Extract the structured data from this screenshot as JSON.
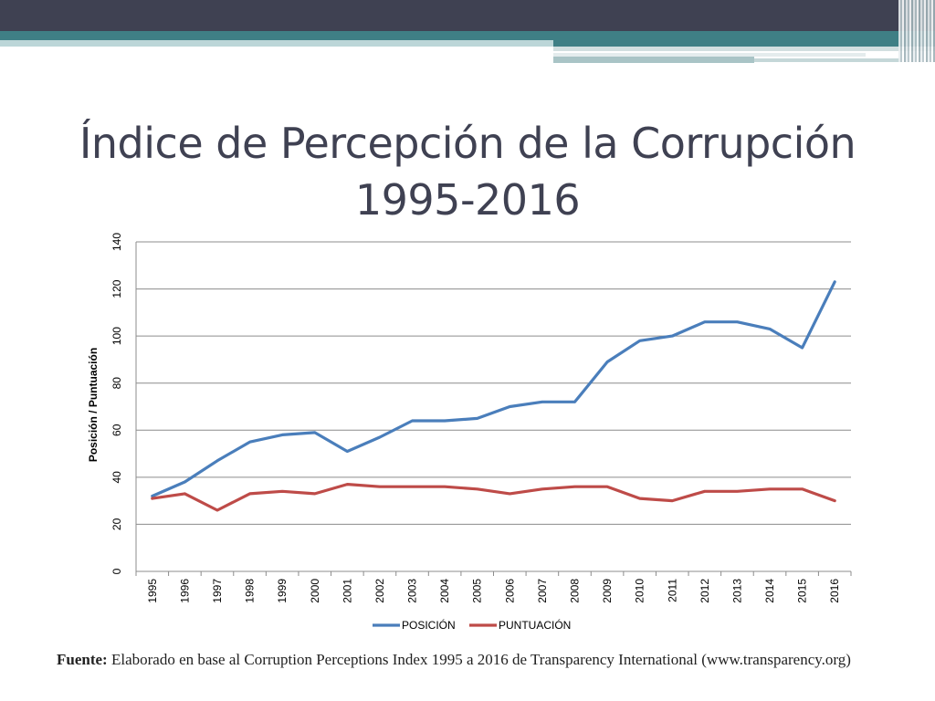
{
  "slide": {
    "title_line1": "Índice de Percepción de la Corrupción",
    "title_line2": "1995-2016",
    "source_label": "Fuente:",
    "source_text": " Elaborado en base al Corruption Perceptions Index 1995 a 2016 de Transparency International (www.transparency.org)"
  },
  "colors": {
    "header_dark": "#3f4152",
    "header_teal": "#3f7f85",
    "series_posicion": "#4a7ebb",
    "series_puntuacion": "#be4b48",
    "gridline": "#8c8c8c"
  },
  "chart_data": {
    "type": "line",
    "title": "",
    "xlabel": "",
    "ylabel": "Posición / Puntuación",
    "ylim": [
      0,
      140
    ],
    "yticks": [
      0,
      20,
      40,
      60,
      80,
      100,
      120,
      140
    ],
    "grid": true,
    "legend_position": "bottom",
    "categories": [
      "1995",
      "1996",
      "1997",
      "1998",
      "1999",
      "2000",
      "2001",
      "2002",
      "2003",
      "2004",
      "2005",
      "2006",
      "2007",
      "2008",
      "2009",
      "2010",
      "2011",
      "2012",
      "2013",
      "2014",
      "2015",
      "2016"
    ],
    "series": [
      {
        "name": "POSICIÓN",
        "values": [
          32,
          38,
          47,
          55,
          58,
          59,
          51,
          57,
          64,
          64,
          65,
          70,
          72,
          72,
          89,
          98,
          100,
          106,
          106,
          103,
          95,
          123
        ]
      },
      {
        "name": "PUNTUACIÓN",
        "values": [
          31,
          33,
          26,
          33,
          34,
          33,
          37,
          36,
          36,
          36,
          35,
          33,
          35,
          36,
          36,
          31,
          30,
          34,
          34,
          35,
          35,
          30
        ]
      }
    ]
  }
}
